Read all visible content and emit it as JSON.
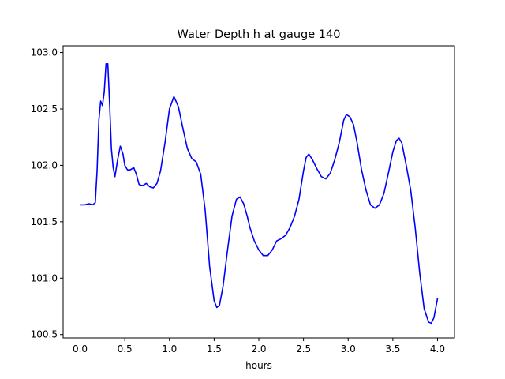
{
  "chart_data": {
    "type": "line",
    "title": "Water Depth h at gauge 140",
    "xlabel": "hours",
    "ylabel": "",
    "xlim": [
      -0.19,
      4.19
    ],
    "ylim": [
      100.47,
      103.06
    ],
    "xticks": [
      0.0,
      0.5,
      1.0,
      1.5,
      2.0,
      2.5,
      3.0,
      3.5,
      4.0
    ],
    "xtick_labels": [
      "0.0",
      "0.5",
      "1.0",
      "1.5",
      "2.0",
      "2.5",
      "3.0",
      "3.5",
      "4.0"
    ],
    "yticks": [
      100.5,
      101.0,
      101.5,
      102.0,
      102.5,
      103.0
    ],
    "ytick_labels": [
      "100.5",
      "101.0",
      "101.5",
      "102.0",
      "102.5",
      "103.0"
    ],
    "grid": false,
    "legend": false,
    "series": [
      {
        "color": "#0000ff",
        "x": [
          0.0,
          0.05,
          0.1,
          0.14,
          0.17,
          0.19,
          0.21,
          0.23,
          0.25,
          0.27,
          0.29,
          0.31,
          0.33,
          0.35,
          0.37,
          0.39,
          0.42,
          0.45,
          0.48,
          0.5,
          0.53,
          0.56,
          0.6,
          0.63,
          0.66,
          0.7,
          0.74,
          0.78,
          0.82,
          0.86,
          0.9,
          0.95,
          1.0,
          1.05,
          1.1,
          1.15,
          1.2,
          1.25,
          1.3,
          1.35,
          1.4,
          1.45,
          1.5,
          1.53,
          1.56,
          1.6,
          1.65,
          1.7,
          1.75,
          1.79,
          1.83,
          1.87,
          1.9,
          1.95,
          2.0,
          2.05,
          2.1,
          2.15,
          2.2,
          2.25,
          2.3,
          2.35,
          2.4,
          2.45,
          2.5,
          2.53,
          2.56,
          2.6,
          2.65,
          2.7,
          2.75,
          2.8,
          2.85,
          2.9,
          2.95,
          2.98,
          3.02,
          3.06,
          3.1,
          3.15,
          3.2,
          3.25,
          3.3,
          3.35,
          3.4,
          3.45,
          3.5,
          3.54,
          3.57,
          3.6,
          3.65,
          3.7,
          3.75,
          3.8,
          3.85,
          3.9,
          3.93,
          3.96,
          4.0
        ],
        "y": [
          101.65,
          101.65,
          101.66,
          101.65,
          101.67,
          101.95,
          102.4,
          102.57,
          102.53,
          102.65,
          102.9,
          102.9,
          102.55,
          102.15,
          101.98,
          101.9,
          102.05,
          102.17,
          102.1,
          102.0,
          101.96,
          101.96,
          101.98,
          101.92,
          101.83,
          101.82,
          101.84,
          101.81,
          101.8,
          101.84,
          101.95,
          102.2,
          102.5,
          102.61,
          102.52,
          102.33,
          102.15,
          102.06,
          102.03,
          101.92,
          101.6,
          101.1,
          100.8,
          100.74,
          100.76,
          100.93,
          101.25,
          101.55,
          101.7,
          101.72,
          101.66,
          101.55,
          101.45,
          101.33,
          101.25,
          101.2,
          101.2,
          101.25,
          101.33,
          101.35,
          101.38,
          101.45,
          101.55,
          101.7,
          101.95,
          102.07,
          102.1,
          102.05,
          101.97,
          101.9,
          101.88,
          101.93,
          102.05,
          102.2,
          102.4,
          102.45,
          102.43,
          102.36,
          102.2,
          101.96,
          101.78,
          101.65,
          101.62,
          101.65,
          101.75,
          101.93,
          102.12,
          102.22,
          102.24,
          102.2,
          102.0,
          101.78,
          101.45,
          101.05,
          100.73,
          100.61,
          100.6,
          100.65,
          100.82
        ]
      }
    ]
  }
}
